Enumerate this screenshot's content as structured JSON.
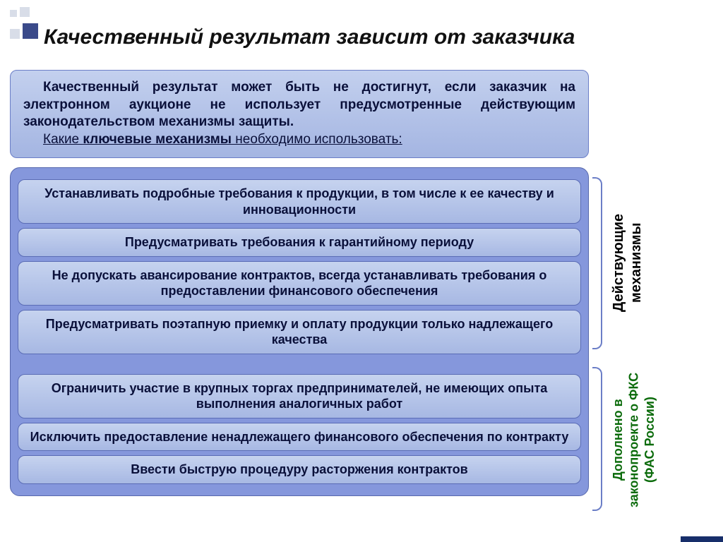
{
  "title": "Качественный результат зависит от заказчика",
  "intro": {
    "paragraph": "Качественный результат может быть не достигнут, если заказчик на электронном аукционе не использует предусмотренные действующим законодательством механизмы защиты.",
    "question_prefix": "Какие ",
    "question_bold": "ключевые механизмы",
    "question_suffix": " необходимо использовать:"
  },
  "items": {
    "g1_0": "Устанавливать подробные требования к продукции, в том числе к ее качеству и инновационности",
    "g1_1": "Предусматривать требования к гарантийному периоду",
    "g1_2": "Не допускать авансирование контрактов, всегда устанавливать требования о предоставлении финансового обеспечения",
    "g1_3": "Предусматривать поэтапную приемку и оплату продукции только надлежащего качества",
    "g2_0": "Ограничить участие в крупных торгах предпринимателей, не имеющих опыта выполнения аналогичных работ",
    "g2_1": "Исключить предоставление ненадлежащего финансового обеспечения по контракту",
    "g2_2": "Ввести быструю процедуру расторжения контрактов"
  },
  "side_labels": {
    "existing": "Действующие механизмы",
    "added": "Дополнено в законопроекте о ФКС (ФАС России)"
  },
  "colors": {
    "accent_dark": "#172e6a",
    "box_border": "#6b7ec7",
    "item_bg_top": "#c6d3ef",
    "item_bg_bottom": "#a7b8e3",
    "list_bg": "#8597dc",
    "green": "#0b6b0b"
  }
}
